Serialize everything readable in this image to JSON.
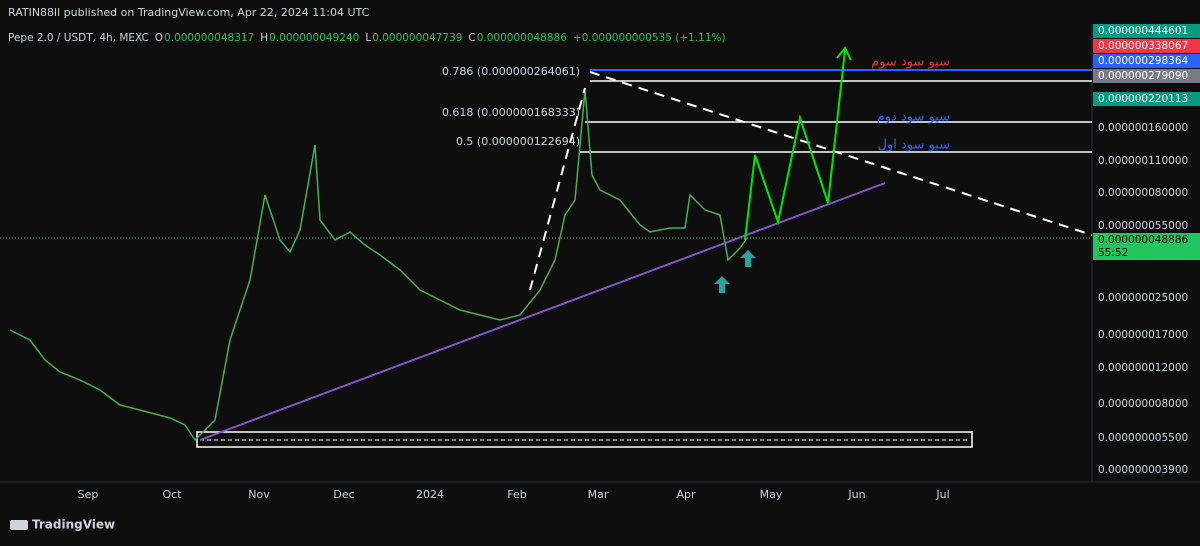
{
  "header": {
    "publisher": "RATIN88ll published on TradingView.com, Apr 22, 2024 11:04 UTC",
    "symbol": "Pepe 2.0 / USDT, 4h, MEXC",
    "open_label": "O",
    "open": "0.000000048317",
    "high_label": "H",
    "high": "0.000000049240",
    "low_label": "L",
    "low": "0.000000047739",
    "close_label": "C",
    "close": "0.000000048886",
    "change": "+0.000000000535 (+1.11%)"
  },
  "price_axis": {
    "labels": [
      "0.000000160000",
      "0.000000110000",
      "0.000000080000",
      "0.000000055000",
      "0.000000025000",
      "0.000000017000",
      "0.000000012000",
      "0.000000008000",
      "0.000000005500",
      "0.000000003900"
    ],
    "badges": [
      "0.000000444601",
      "0.000000338067",
      "0.000000298364",
      "0.000000279090",
      "0.000000220113",
      "0.000000048886"
    ],
    "countdown": "55:52"
  },
  "time_axis": {
    "labels": [
      "Sep",
      "Oct",
      "Nov",
      "Dec",
      "2024",
      "Feb",
      "Mar",
      "Apr",
      "May",
      "Jun",
      "Jul"
    ]
  },
  "fib_labels": [
    "0.786 (0.000000264061)",
    "0.618 (0.000000168333)",
    "0.5 (0.000000122694)"
  ],
  "annotations": [
    "سیو سود سوم",
    "سیو سود دوم",
    "سیو سود اول"
  ],
  "footer": {
    "brand": "TradingView"
  }
}
